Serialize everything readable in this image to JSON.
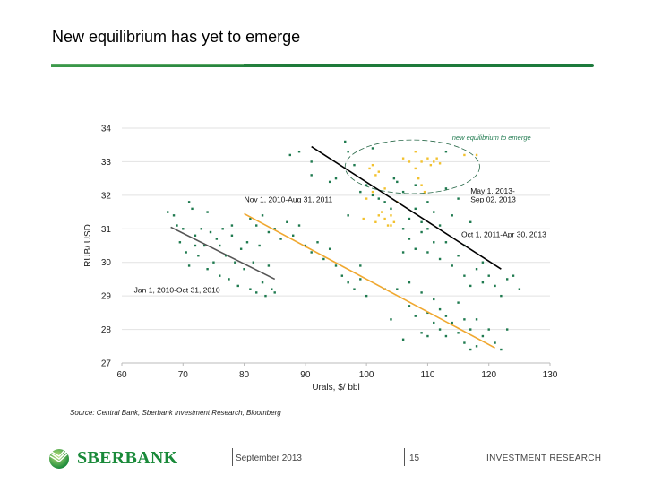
{
  "slide": {
    "title": "New equilibrium has yet to emerge",
    "source": "Source: Central Bank, Sberbank Investment Research, Bloomberg",
    "footer": {
      "logo_text": "SBERBANK",
      "date": "September 2013",
      "page": "15",
      "department": "INVESTMENT RESEARCH"
    },
    "colors": {
      "brand_green": "#1a8a3a",
      "green_points": "#1f7a4f",
      "yellow_points": "#f2c12e"
    }
  },
  "chart_data": {
    "type": "scatter",
    "title": "",
    "xlabel": "Urals, $/ bbl",
    "ylabel": "RUB/ USD",
    "xlim": [
      60,
      130
    ],
    "ylim": [
      27,
      34
    ],
    "xticks": [
      60,
      70,
      80,
      90,
      100,
      110,
      120,
      130
    ],
    "yticks": [
      27,
      28,
      29,
      30,
      31,
      32,
      33,
      34
    ],
    "grid": "horizontal",
    "series": [
      {
        "color": "#1f7a4f",
        "points": [
          [
            67.5,
            31.5
          ],
          [
            68.5,
            31.4
          ],
          [
            69,
            31.1
          ],
          [
            69.5,
            30.6
          ],
          [
            70,
            31.0
          ],
          [
            70.5,
            30.3
          ],
          [
            71,
            31.8
          ],
          [
            71.5,
            31.6
          ],
          [
            71,
            29.9
          ],
          [
            72,
            30.8
          ],
          [
            72.5,
            30.2
          ],
          [
            73,
            31.0
          ],
          [
            73.5,
            30.5
          ],
          [
            74,
            31.5
          ],
          [
            74.5,
            30.9
          ],
          [
            75,
            30.0
          ],
          [
            75.5,
            30.7
          ],
          [
            76,
            29.6
          ],
          [
            76.5,
            31.0
          ],
          [
            77,
            30.2
          ],
          [
            77.5,
            29.5
          ],
          [
            78,
            30.8
          ],
          [
            78.5,
            30.0
          ],
          [
            79,
            29.3
          ],
          [
            79.5,
            30.4
          ],
          [
            80,
            29.8
          ],
          [
            80.5,
            30.6
          ],
          [
            81,
            29.2
          ],
          [
            81.5,
            30.0
          ],
          [
            82,
            29.1
          ],
          [
            82.5,
            30.5
          ],
          [
            83,
            29.4
          ],
          [
            83.5,
            29.0
          ],
          [
            84,
            29.9
          ],
          [
            84.5,
            29.2
          ],
          [
            85,
            29.1
          ],
          [
            76,
            30.5
          ],
          [
            74,
            29.8
          ],
          [
            78,
            31.1
          ],
          [
            72,
            30.5
          ],
          [
            81,
            31.3
          ],
          [
            82,
            31.1
          ],
          [
            83,
            31.4
          ],
          [
            84,
            30.9
          ],
          [
            85,
            31.0
          ],
          [
            86,
            30.7
          ],
          [
            87,
            31.2
          ],
          [
            88,
            30.8
          ],
          [
            89,
            31.1
          ],
          [
            90,
            30.5
          ],
          [
            91,
            30.3
          ],
          [
            92,
            30.6
          ],
          [
            93,
            30.1
          ],
          [
            94,
            30.4
          ],
          [
            95,
            29.9
          ],
          [
            96,
            29.6
          ],
          [
            97,
            29.4
          ],
          [
            98,
            29.2
          ],
          [
            99,
            29.5
          ],
          [
            100,
            29.0
          ],
          [
            87.5,
            33.2
          ],
          [
            89,
            33.3
          ],
          [
            91,
            32.6
          ],
          [
            91,
            33.0
          ],
          [
            96.5,
            33.6
          ],
          [
            97,
            33.3
          ],
          [
            98,
            32.9
          ],
          [
            95,
            32.5
          ],
          [
            94,
            32.4
          ],
          [
            97,
            31.4
          ],
          [
            99,
            32.1
          ],
          [
            100,
            32.3
          ],
          [
            101,
            32.0
          ],
          [
            102,
            31.9
          ],
          [
            103,
            31.8
          ],
          [
            104,
            31.6
          ],
          [
            105,
            32.4
          ],
          [
            106,
            32.1
          ],
          [
            106,
            31.0
          ],
          [
            107,
            31.3
          ],
          [
            107,
            30.7
          ],
          [
            108,
            31.6
          ],
          [
            108,
            30.4
          ],
          [
            109,
            31.2
          ],
          [
            109,
            30.9
          ],
          [
            110,
            31.8
          ],
          [
            110,
            30.3
          ],
          [
            110,
            31.0
          ],
          [
            111,
            30.6
          ],
          [
            111,
            31.5
          ],
          [
            112,
            30.1
          ],
          [
            112,
            31.1
          ],
          [
            113,
            30.6
          ],
          [
            113,
            32.2
          ],
          [
            114,
            31.4
          ],
          [
            114,
            29.9
          ],
          [
            115,
            30.2
          ],
          [
            115,
            31.9
          ],
          [
            116,
            29.6
          ],
          [
            116,
            30.5
          ],
          [
            117,
            29.3
          ],
          [
            117,
            31.2
          ],
          [
            118,
            29.8
          ],
          [
            119,
            30.0
          ],
          [
            119,
            29.4
          ],
          [
            120,
            29.6
          ],
          [
            121,
            29.3
          ],
          [
            122,
            29.0
          ],
          [
            123,
            29.5
          ],
          [
            124,
            29.6
          ],
          [
            125,
            29.2
          ],
          [
            106,
            30.3
          ],
          [
            108,
            32.3
          ],
          [
            113,
            33.3
          ],
          [
            101,
            33.4
          ],
          [
            104.5,
            32.5
          ],
          [
            104,
            28.3
          ],
          [
            105,
            29.2
          ],
          [
            106,
            27.7
          ],
          [
            107,
            28.7
          ],
          [
            108,
            28.4
          ],
          [
            109,
            27.9
          ],
          [
            109,
            29.1
          ],
          [
            110,
            28.5
          ],
          [
            110,
            27.8
          ],
          [
            111,
            28.2
          ],
          [
            111,
            28.9
          ],
          [
            112,
            28.0
          ],
          [
            112,
            28.6
          ],
          [
            113,
            27.8
          ],
          [
            113,
            28.4
          ],
          [
            114,
            28.2
          ],
          [
            115,
            27.9
          ],
          [
            115,
            28.8
          ],
          [
            116,
            27.6
          ],
          [
            116,
            28.3
          ],
          [
            117,
            28.0
          ],
          [
            117,
            27.4
          ],
          [
            118,
            28.3
          ],
          [
            118,
            27.5
          ],
          [
            119,
            27.8
          ],
          [
            120,
            28.0
          ],
          [
            121,
            27.6
          ],
          [
            122,
            27.4
          ],
          [
            123,
            28.0
          ],
          [
            107,
            29.4
          ],
          [
            103,
            29.2
          ],
          [
            99,
            29.9
          ]
        ]
      },
      {
        "color": "#f2c12e",
        "points": [
          [
            100.5,
            32.8
          ],
          [
            101,
            32.9
          ],
          [
            101.5,
            32.6
          ],
          [
            102,
            32.7
          ],
          [
            102,
            31.4
          ],
          [
            101.5,
            31.2
          ],
          [
            102.5,
            31.5
          ],
          [
            103,
            31.3
          ],
          [
            103.5,
            31.1
          ],
          [
            104,
            31.4
          ],
          [
            104,
            31.1
          ],
          [
            104.5,
            31.2
          ],
          [
            99.5,
            31.3
          ],
          [
            100,
            31.9
          ],
          [
            101,
            32.1
          ],
          [
            106,
            33.1
          ],
          [
            107,
            33.0
          ],
          [
            108,
            32.8
          ],
          [
            108,
            33.3
          ],
          [
            108.5,
            32.5
          ],
          [
            109,
            33.0
          ],
          [
            109,
            32.3
          ],
          [
            110,
            33.1
          ],
          [
            110.5,
            32.9
          ],
          [
            111,
            33.0
          ],
          [
            111.5,
            33.1
          ],
          [
            112,
            32.95
          ],
          [
            116,
            33.2
          ],
          [
            118,
            33.2
          ],
          [
            105,
            31.8
          ],
          [
            103,
            32.2
          ],
          [
            109.5,
            32.1
          ]
        ]
      }
    ],
    "trend_lines": [
      {
        "label": "Jan 1, 2010-Oct 31, 2010",
        "color": "#555555",
        "from": [
          68,
          31.05
        ],
        "to": [
          85,
          29.5
        ]
      },
      {
        "label": "Nov 1, 2010-Aug 31, 2011",
        "color": "#f0a830",
        "from": [
          80,
          31.45
        ],
        "to": [
          121,
          27.45
        ]
      },
      {
        "label": "Oct 1, 2011-Apr 30, 2013",
        "color": "#000000",
        "from": [
          91,
          33.45
        ],
        "to": [
          122,
          29.8
        ]
      }
    ],
    "annotations": [
      {
        "text": "Jan 1, 2010-Oct 31, 2010",
        "at": [
          62,
          29.1
        ]
      },
      {
        "text": "Nov 1, 2010-Aug 31, 2011",
        "at": [
          80,
          31.8
        ]
      },
      {
        "text": "May 1, 2013-",
        "at": [
          117,
          32.05
        ]
      },
      {
        "text": "Sep 02, 2013",
        "at": [
          117,
          31.8
        ]
      },
      {
        "text": "Oct 1, 2011-Apr 30, 2013",
        "at": [
          115.5,
          30.75
        ]
      },
      {
        "text": "new equilibrium to emerge",
        "at": [
          114,
          33.65
        ],
        "color": "#1f7a4f",
        "italic": true
      }
    ],
    "ellipse": {
      "center": [
        107.5,
        32.85
      ],
      "rx": 11,
      "ry": 0.8,
      "style": "dashed"
    }
  }
}
